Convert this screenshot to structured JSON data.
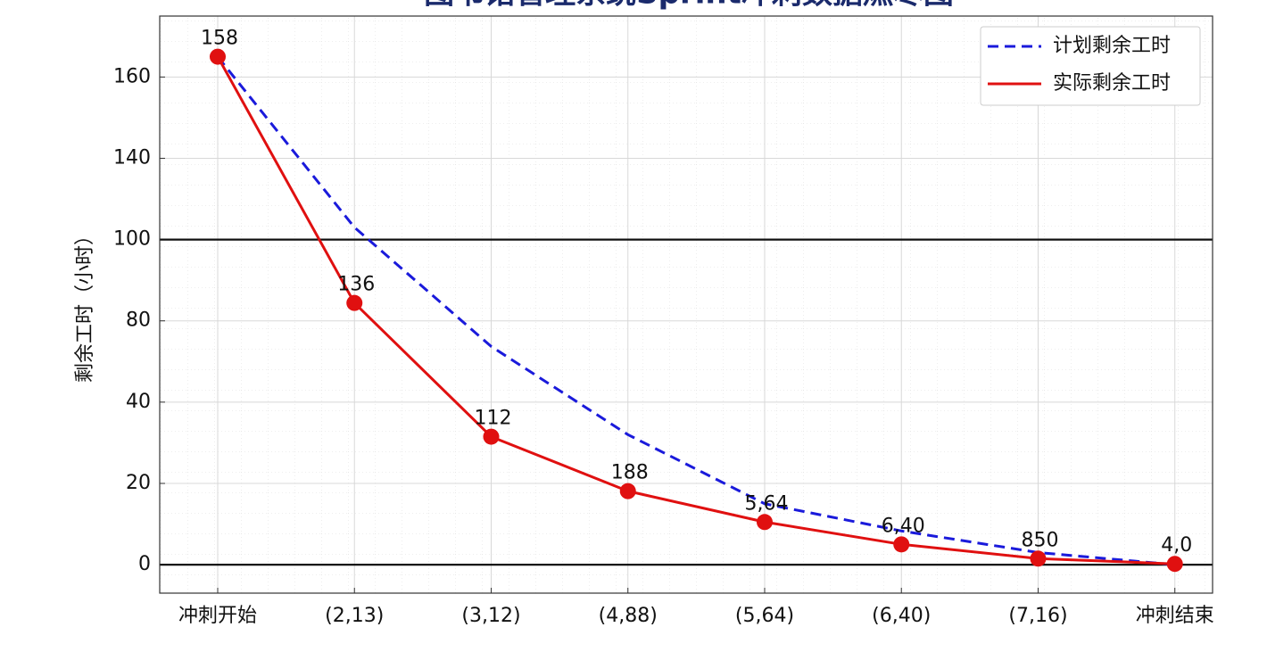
{
  "chart_data": {
    "type": "line",
    "title": "图书馆管理系统Sprint冲刺数据燃尽图",
    "ylabel": "剩余工时（小时）",
    "categories": [
      "冲刺开始",
      "(2,13)",
      "(3,12)",
      "(4,88)",
      "(5,64)",
      "(6,40)",
      "(7,16)",
      "冲刺结束"
    ],
    "series": [
      {
        "name": "计划剩余工时",
        "color": "#1a1adb",
        "dashed": true,
        "markers": false,
        "values": [
          165,
          106,
          67.4,
          32,
          15,
          8.3,
          3,
          0
        ]
      },
      {
        "name": "实际剩余工时",
        "color": "#e01010",
        "dashed": false,
        "markers": true,
        "values": [
          165,
          84.4,
          31.5,
          18.1,
          10.5,
          5,
          1.5,
          0.2
        ]
      }
    ],
    "annotations": [
      "158",
      "136",
      "112",
      "188",
      "5,64",
      "6,40",
      "850",
      "4,0"
    ],
    "ylim": [
      -7,
      175
    ],
    "yticks": [
      0,
      20,
      40,
      80,
      100,
      140,
      160
    ],
    "reference_lines": [
      0,
      100
    ],
    "grid": true,
    "legend_loc": "upper right"
  }
}
